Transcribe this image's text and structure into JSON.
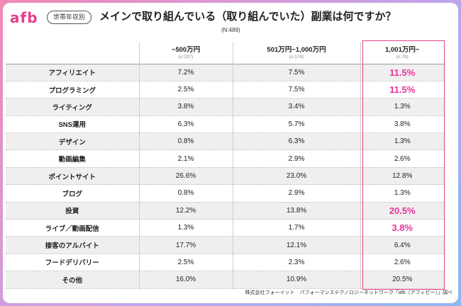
{
  "logo": "afb",
  "tag": "世帯年収別",
  "title": "メインで取り組んでいる（取り組んでいた）副業は何ですか？",
  "n_total": "(N:489)",
  "source": "株式会社フォーイット　パフォーマンステクノロジーネットワーク「afb（アフィビー）」調べ",
  "accent_color": "#e83e8c",
  "chart_data": {
    "type": "table",
    "title": "メインで取り組んでいる（取り組んでいた）副業は何ですか？",
    "columns": [
      {
        "label": "~500万円",
        "n": "(n:237)"
      },
      {
        "label": "501万円~1,000万円",
        "n": "(n:174)"
      },
      {
        "label": "1,001万円~",
        "n": "(n:78)"
      }
    ],
    "rows": [
      {
        "label": "アフィリエイト",
        "values": [
          "7.2%",
          "7.5%",
          "11.5%"
        ],
        "highlight": true
      },
      {
        "label": "プログラミング",
        "values": [
          "2.5%",
          "7.5%",
          "11.5%"
        ],
        "highlight": true
      },
      {
        "label": "ライティング",
        "values": [
          "3.8%",
          "3.4%",
          "1.3%"
        ],
        "highlight": false
      },
      {
        "label": "SNS運用",
        "values": [
          "6.3%",
          "5.7%",
          "3.8%"
        ],
        "highlight": false
      },
      {
        "label": "デザイン",
        "values": [
          "0.8%",
          "6.3%",
          "1.3%"
        ],
        "highlight": false
      },
      {
        "label": "動画編集",
        "values": [
          "2.1%",
          "2.9%",
          "2.6%"
        ],
        "highlight": false
      },
      {
        "label": "ポイントサイト",
        "values": [
          "26.6%",
          "23.0%",
          "12.8%"
        ],
        "highlight": false
      },
      {
        "label": "ブログ",
        "values": [
          "0.8%",
          "2.9%",
          "1.3%"
        ],
        "highlight": false
      },
      {
        "label": "投資",
        "values": [
          "12.2%",
          "13.8%",
          "20.5%"
        ],
        "highlight": true
      },
      {
        "label": "ライブ／動画配信",
        "values": [
          "1.3%",
          "1.7%",
          "3.8%"
        ],
        "highlight": true
      },
      {
        "label": "接客のアルバイト",
        "values": [
          "17.7%",
          "12.1%",
          "6.4%"
        ],
        "highlight": false
      },
      {
        "label": "フードデリバリー",
        "values": [
          "2.5%",
          "2.3%",
          "2.6%"
        ],
        "highlight": false
      },
      {
        "label": "その他",
        "values": [
          "16.0%",
          "10.9%",
          "20.5%"
        ],
        "highlight": false
      }
    ]
  }
}
